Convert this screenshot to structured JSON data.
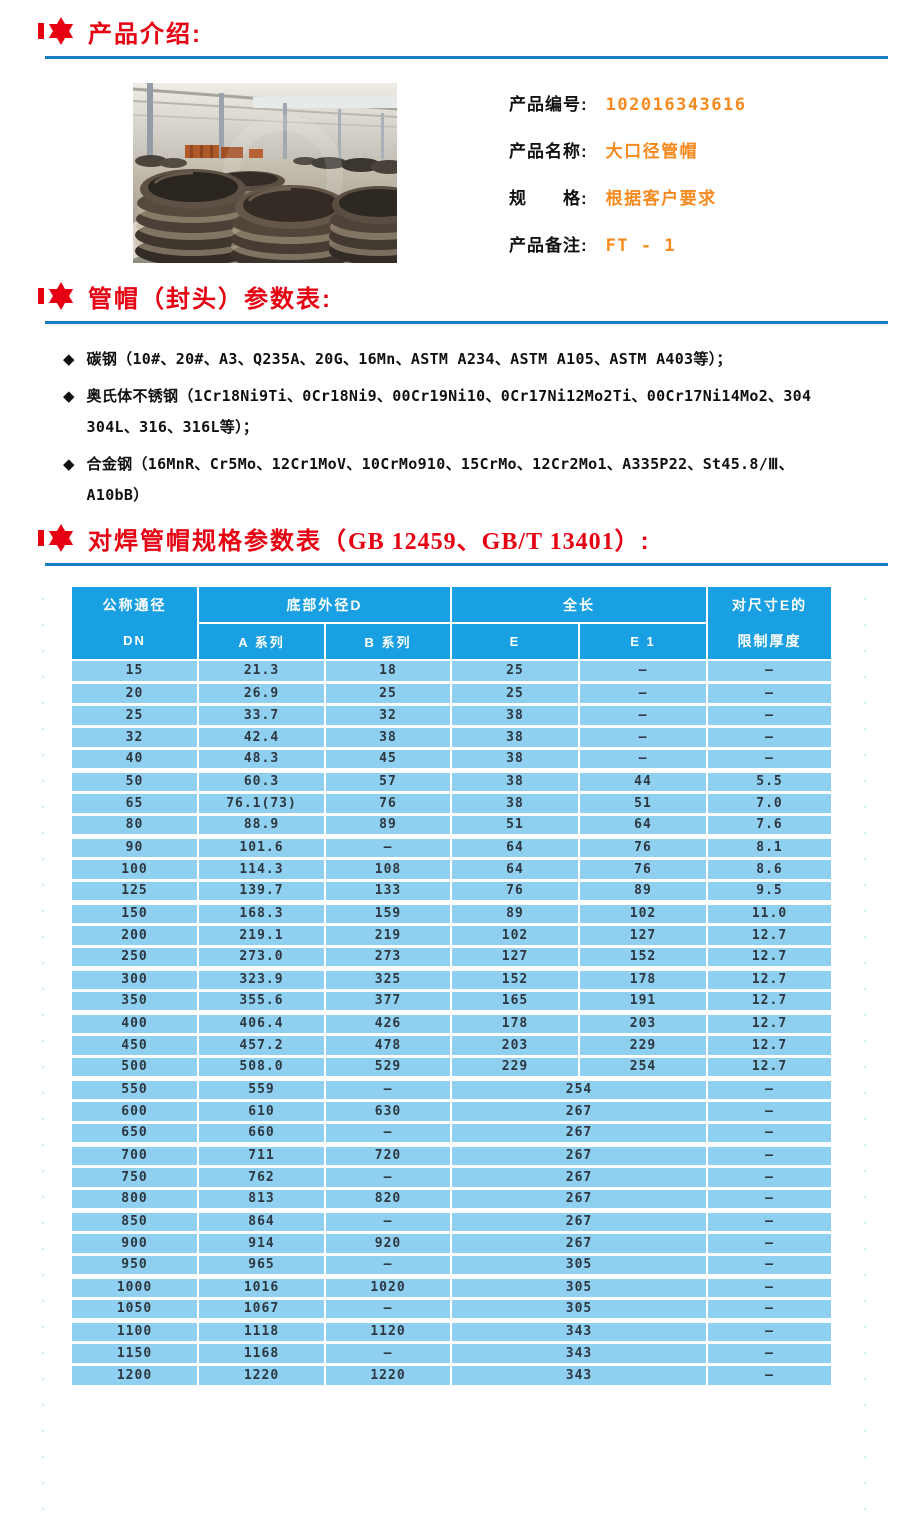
{
  "intro": {
    "title": "产品介绍:",
    "info": [
      {
        "label": "产品编号:",
        "value": "102016343616"
      },
      {
        "label": "产品名称:",
        "value": "大口径管帽"
      },
      {
        "label": "规　　格:",
        "value": "根据客户要求"
      },
      {
        "label": "产品备注:",
        "value": "FT - 1"
      }
    ]
  },
  "materials": {
    "title": "管帽（封头）参数表:",
    "bullet_icon": "◆",
    "bullets": [
      {
        "lines": [
          "碳钢（10#、20#、A3、Q235A、20G、16Mn、ASTM A234、ASTM A105、ASTM A403等）；"
        ]
      },
      {
        "lines": [
          "奥氏体不锈钢（1Cr18Ni9Ti、0Cr18Ni9、00Cr19Ni10、0Cr17Ni12Mo2Ti、00Cr17Ni14Mo2、304",
          "304L、316、316L等）；"
        ]
      },
      {
        "lines": [
          "合金钢（16MnR、Cr5Mo、12Cr1MoV、10CrMo910、15CrMo、12Cr2Mo1、A335P22、St45.8/Ⅲ、",
          "A10bB）"
        ]
      }
    ]
  },
  "spec": {
    "title_prefix": "对焊管帽规格参数表（",
    "title_standards": "GB 12459、GB/T 13401",
    "title_suffix": "）:",
    "header": {
      "dn_line1": "公称通径",
      "dn_line2": "DN",
      "outer_diameter_group": "底部外径D",
      "series_a": "A 系列",
      "series_b": "B 系列",
      "length_group": "全长",
      "e": "E",
      "e1": "E 1",
      "limit_line1": "对尺寸E的",
      "limit_line2": "限制厚度"
    },
    "rows": [
      {
        "dn": "15",
        "a": "21.3",
        "b": "18",
        "e": "25",
        "e1": "–",
        "t": "–"
      },
      {
        "dn": "20",
        "a": "26.9",
        "b": "25",
        "e": "25",
        "e1": "–",
        "t": "–"
      },
      {
        "dn": "25",
        "a": "33.7",
        "b": "32",
        "e": "38",
        "e1": "–",
        "t": "–"
      },
      {
        "dn": "32",
        "a": "42.4",
        "b": "38",
        "e": "38",
        "e1": "–",
        "t": "–"
      },
      {
        "dn": "40",
        "a": "48.3",
        "b": "45",
        "e": "38",
        "e1": "–",
        "t": "–",
        "group_end": true
      },
      {
        "dn": "50",
        "a": "60.3",
        "b": "57",
        "e": "38",
        "e1": "44",
        "t": "5.5"
      },
      {
        "dn": "65",
        "a": "76.1(73)",
        "b": "76",
        "e": "38",
        "e1": "51",
        "t": "7.0"
      },
      {
        "dn": "80",
        "a": "88.9",
        "b": "89",
        "e": "51",
        "e1": "64",
        "t": "7.6",
        "group_end": true
      },
      {
        "dn": "90",
        "a": "101.6",
        "b": "–",
        "e": "64",
        "e1": "76",
        "t": "8.1"
      },
      {
        "dn": "100",
        "a": "114.3",
        "b": "108",
        "e": "64",
        "e1": "76",
        "t": "8.6"
      },
      {
        "dn": "125",
        "a": "139.7",
        "b": "133",
        "e": "76",
        "e1": "89",
        "t": "9.5",
        "group_end": true
      },
      {
        "dn": "150",
        "a": "168.3",
        "b": "159",
        "e": "89",
        "e1": "102",
        "t": "11.0"
      },
      {
        "dn": "200",
        "a": "219.1",
        "b": "219",
        "e": "102",
        "e1": "127",
        "t": "12.7"
      },
      {
        "dn": "250",
        "a": "273.0",
        "b": "273",
        "e": "127",
        "e1": "152",
        "t": "12.7",
        "group_end": true
      },
      {
        "dn": "300",
        "a": "323.9",
        "b": "325",
        "e": "152",
        "e1": "178",
        "t": "12.7"
      },
      {
        "dn": "350",
        "a": "355.6",
        "b": "377",
        "e": "165",
        "e1": "191",
        "t": "12.7",
        "group_end": true
      },
      {
        "dn": "400",
        "a": "406.4",
        "b": "426",
        "e": "178",
        "e1": "203",
        "t": "12.7"
      },
      {
        "dn": "450",
        "a": "457.2",
        "b": "478",
        "e": "203",
        "e1": "229",
        "t": "12.7"
      },
      {
        "dn": "500",
        "a": "508.0",
        "b": "529",
        "e": "229",
        "e1": "254",
        "t": "12.7",
        "group_end": true
      },
      {
        "dn": "550",
        "a": "559",
        "b": "–",
        "span": "254",
        "t": "–"
      },
      {
        "dn": "600",
        "a": "610",
        "b": "630",
        "span": "267",
        "t": "–"
      },
      {
        "dn": "650",
        "a": "660",
        "b": "–",
        "span": "267",
        "t": "–",
        "group_end": true
      },
      {
        "dn": "700",
        "a": "711",
        "b": "720",
        "span": "267",
        "t": "–"
      },
      {
        "dn": "750",
        "a": "762",
        "b": "–",
        "span": "267",
        "t": "–"
      },
      {
        "dn": "800",
        "a": "813",
        "b": "820",
        "span": "267",
        "t": "–",
        "group_end": true
      },
      {
        "dn": "850",
        "a": "864",
        "b": "–",
        "span": "267",
        "t": "–"
      },
      {
        "dn": "900",
        "a": "914",
        "b": "920",
        "span": "267",
        "t": "–"
      },
      {
        "dn": "950",
        "a": "965",
        "b": "–",
        "span": "305",
        "t": "–",
        "group_end": true
      },
      {
        "dn": "1000",
        "a": "1016",
        "b": "1020",
        "span": "305",
        "t": "–"
      },
      {
        "dn": "1050",
        "a": "1067",
        "b": "–",
        "span": "305",
        "t": "–",
        "group_end": true
      },
      {
        "dn": "1100",
        "a": "1118",
        "b": "1120",
        "span": "343",
        "t": "–"
      },
      {
        "dn": "1150",
        "a": "1168",
        "b": "–",
        "span": "343",
        "t": "–"
      },
      {
        "dn": "1200",
        "a": "1220",
        "b": "1220",
        "span": "343",
        "t": "–"
      }
    ]
  },
  "colors": {
    "accent_red": "#e60012",
    "accent_orange": "#f68a1e",
    "divider_blue": "#1a7cc2",
    "table_header_blue": "#18a0e2",
    "table_row_blue": "#8fd0f0"
  },
  "photo": {
    "name": "warehouse-pipe-caps-photo"
  }
}
